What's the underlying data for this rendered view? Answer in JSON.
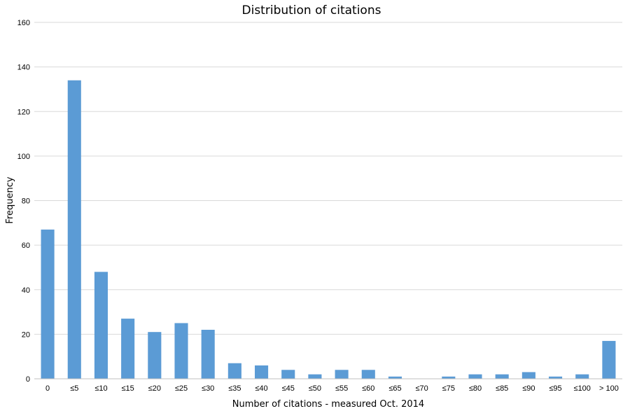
{
  "chart_data": {
    "type": "bar",
    "title": "Distribution of citations",
    "xlabel": "Number  of citations - measured Oct. 2014",
    "ylabel": "Frequency",
    "ylim": [
      0,
      160
    ],
    "yticks": [
      0,
      20,
      40,
      60,
      80,
      100,
      120,
      140,
      160
    ],
    "grid": true,
    "legend": "none",
    "bar_color": "#5b9bd5",
    "categories": [
      "0",
      "≤5",
      "≤10",
      "≤15",
      "≤20",
      "≤25",
      "≤30",
      "≤35",
      "≤40",
      "≤45",
      "≤50",
      "≤55",
      "≤60",
      "≤65",
      "≤70",
      "≤75",
      "≤80",
      "≤85",
      "≤90",
      "≤95",
      "≤100",
      "> 100"
    ],
    "values": [
      67,
      134,
      48,
      27,
      21,
      25,
      22,
      7,
      6,
      4,
      2,
      4,
      4,
      1,
      0,
      1,
      2,
      2,
      3,
      1,
      2,
      17
    ]
  }
}
